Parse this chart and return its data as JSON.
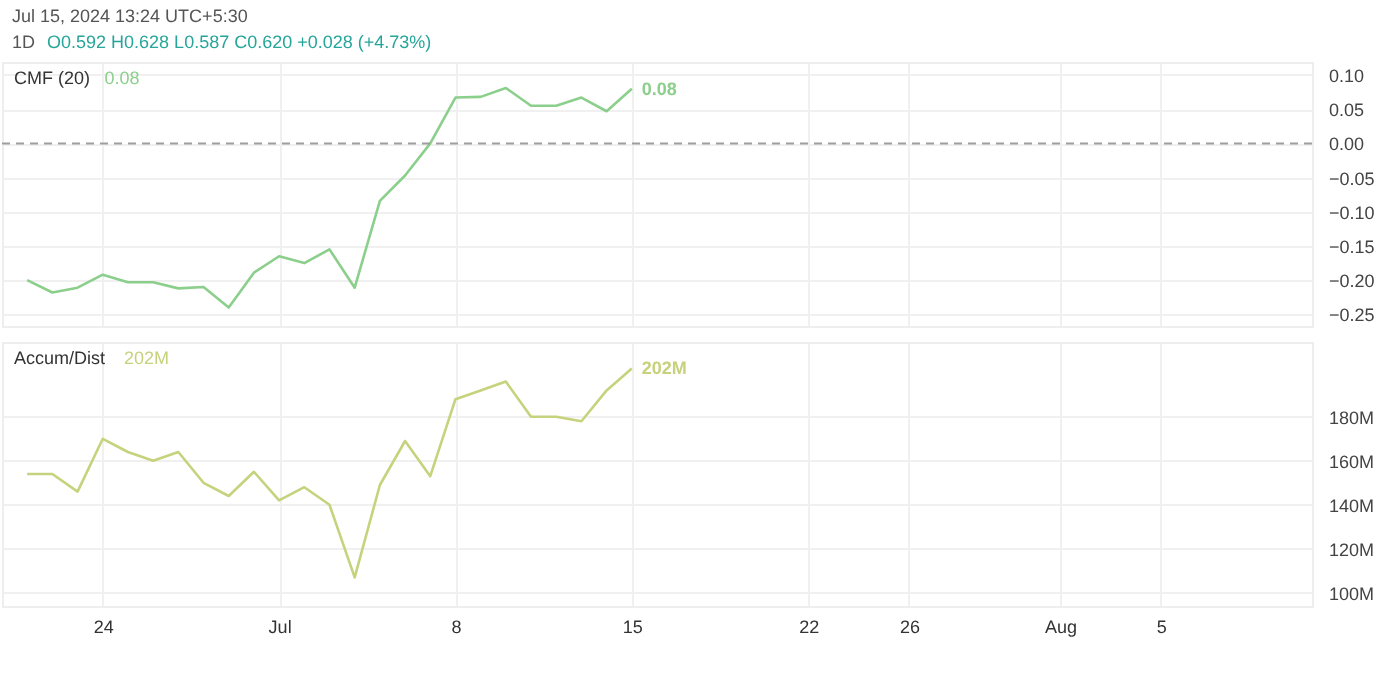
{
  "chart_data": [
    {
      "type": "line",
      "annotations": [
        "Jul 15, 2024 13:24 UTC+5:30",
        "1D",
        "O0.592 H0.628 L0.587 C0.620 +0.028 (+4.73%)"
      ],
      "x": [
        "--06-21",
        "--06-22",
        "--06-23",
        "--06-24",
        "--06-25",
        "--06-26",
        "--06-27",
        "--06-28",
        "--06-29",
        "--06-30",
        "--07-01",
        "--07-02",
        "--07-03",
        "--07-04",
        "--07-05",
        "--07-06",
        "--07-07",
        "--07-08",
        "--07-09",
        "--07-10",
        "--07-11",
        "--07-12",
        "--07-13",
        "--07-14",
        "--07-15"
      ],
      "series": [
        {
          "name": "CMF (20)",
          "color": "#8ccf8c",
          "values": [
            -0.2,
            -0.218,
            -0.211,
            -0.192,
            -0.203,
            -0.203,
            -0.212,
            -0.21,
            -0.24,
            -0.189,
            -0.165,
            -0.175,
            -0.155,
            -0.211,
            -0.084,
            -0.047,
            0.0,
            0.067,
            0.068,
            0.081,
            0.055,
            0.055,
            0.067,
            0.047,
            0.08
          ],
          "value_labels": [
            null,
            null,
            null,
            null,
            null,
            null,
            null,
            null,
            null,
            null,
            null,
            null,
            null,
            null,
            null,
            null,
            null,
            null,
            null,
            null,
            null,
            null,
            null,
            null,
            "0.08"
          ]
        }
      ],
      "xlim": [
        "--06-20",
        "--08-11"
      ],
      "xticks": [
        {
          "value": "--06-24",
          "label": "24"
        },
        {
          "value": "--07-01",
          "label": "Jul"
        },
        {
          "value": "--07-08",
          "label": "8"
        },
        {
          "value": "--07-15",
          "label": "15"
        },
        {
          "value": "--07-22",
          "label": "22"
        },
        {
          "value": "--07-26",
          "label": "26"
        },
        {
          "value": "--08-01",
          "label": "Aug"
        },
        {
          "value": "--08-05",
          "label": "5"
        }
      ],
      "ylim": [
        -0.267,
        0.119
      ],
      "yticks": [
        {
          "value": 0.1,
          "label": "0.10"
        },
        {
          "value": 0.05,
          "label": "0.05"
        },
        {
          "value": 0,
          "label": "0.00"
        },
        {
          "value": -0.05,
          "label": "−0.05"
        },
        {
          "value": -0.1,
          "label": "−0.10"
        },
        {
          "value": -0.15,
          "label": "−0.15"
        },
        {
          "value": -0.2,
          "label": "−0.20"
        },
        {
          "value": -0.25,
          "label": "−0.25"
        }
      ],
      "ref_lines": [
        {
          "axis": "y",
          "value": 0,
          "color": "#9e9e9e",
          "line_style": "dashed"
        }
      ],
      "grid": true,
      "tick_labels": "y",
      "marker": "none",
      "line_style": "solid"
    },
    {
      "type": "line",
      "x": [
        "--06-21",
        "--06-22",
        "--06-23",
        "--06-24",
        "--06-25",
        "--06-26",
        "--06-27",
        "--06-28",
        "--06-29",
        "--06-30",
        "--07-01",
        "--07-02",
        "--07-03",
        "--07-04",
        "--07-05",
        "--07-06",
        "--07-07",
        "--07-08",
        "--07-09",
        "--07-10",
        "--07-11",
        "--07-12",
        "--07-13",
        "--07-14",
        "--07-15"
      ],
      "series": [
        {
          "name": "Accum/Dist",
          "color": "#c6d27c",
          "values": [
            154,
            154,
            146,
            170,
            164,
            160,
            164,
            150,
            144,
            155,
            142,
            148,
            140,
            107,
            149,
            169,
            153,
            188,
            192,
            196,
            180,
            180,
            178,
            192,
            202
          ],
          "value_labels": [
            null,
            null,
            null,
            null,
            null,
            null,
            null,
            null,
            null,
            null,
            null,
            null,
            null,
            null,
            null,
            null,
            null,
            null,
            null,
            null,
            null,
            null,
            null,
            null,
            "202M"
          ]
        }
      ],
      "xlim": [
        "--06-20",
        "--08-11"
      ],
      "xticks": [
        {
          "value": "--06-24",
          "label": "24"
        },
        {
          "value": "--07-01",
          "label": "Jul"
        },
        {
          "value": "--07-08",
          "label": "8"
        },
        {
          "value": "--07-15",
          "label": "15"
        },
        {
          "value": "--07-22",
          "label": "22"
        },
        {
          "value": "--07-26",
          "label": "26"
        },
        {
          "value": "--08-01",
          "label": "Aug"
        },
        {
          "value": "--08-05",
          "label": "5"
        }
      ],
      "ylim": [
        94,
        214
      ],
      "yticks": [
        {
          "value": 100,
          "label": "100M"
        },
        {
          "value": 120,
          "label": "120M"
        },
        {
          "value": 140,
          "label": "140M"
        },
        {
          "value": 160,
          "label": "160M"
        },
        {
          "value": 180,
          "label": "180M"
        }
      ],
      "grid": true,
      "marker": "none",
      "line_style": "solid"
    }
  ]
}
